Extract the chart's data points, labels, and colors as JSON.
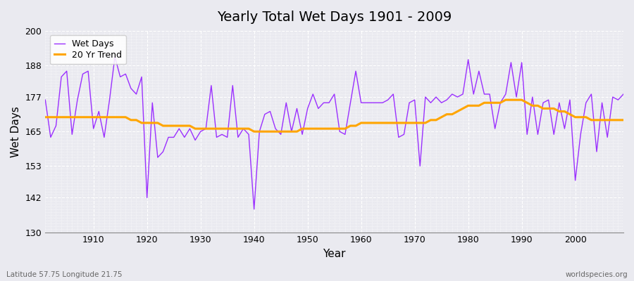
{
  "title": "Yearly Total Wet Days 1901 - 2009",
  "xlabel": "Year",
  "ylabel": "Wet Days",
  "footnote_left": "Latitude 57.75 Longitude 21.75",
  "footnote_right": "worldspecies.org",
  "ylim": [
    130,
    200
  ],
  "yticks": [
    130,
    142,
    153,
    165,
    177,
    188,
    200
  ],
  "xlim": [
    1901,
    2009
  ],
  "wet_days_color": "#9B30FF",
  "trend_color": "#FFA500",
  "bg_color": "#EAEAF0",
  "grid_color": "#FFFFFF",
  "legend_wet": "Wet Days",
  "legend_trend": "20 Yr Trend",
  "years": [
    1901,
    1902,
    1903,
    1904,
    1905,
    1906,
    1907,
    1908,
    1909,
    1910,
    1911,
    1912,
    1913,
    1914,
    1915,
    1916,
    1917,
    1918,
    1919,
    1920,
    1921,
    1922,
    1923,
    1924,
    1925,
    1926,
    1927,
    1928,
    1929,
    1930,
    1931,
    1932,
    1933,
    1934,
    1935,
    1936,
    1937,
    1938,
    1939,
    1940,
    1941,
    1942,
    1943,
    1944,
    1945,
    1946,
    1947,
    1948,
    1949,
    1950,
    1951,
    1952,
    1953,
    1954,
    1955,
    1956,
    1957,
    1958,
    1959,
    1960,
    1961,
    1962,
    1963,
    1964,
    1965,
    1966,
    1967,
    1968,
    1969,
    1970,
    1971,
    1972,
    1973,
    1974,
    1975,
    1976,
    1977,
    1978,
    1979,
    1980,
    1981,
    1982,
    1983,
    1984,
    1985,
    1986,
    1987,
    1988,
    1989,
    1990,
    1991,
    1992,
    1993,
    1994,
    1995,
    1996,
    1997,
    1998,
    1999,
    2000,
    2001,
    2002,
    2003,
    2004,
    2005,
    2006,
    2007,
    2008,
    2009
  ],
  "wet_days": [
    176,
    163,
    167,
    184,
    186,
    164,
    176,
    185,
    186,
    166,
    172,
    163,
    176,
    191,
    184,
    185,
    180,
    178,
    184,
    142,
    175,
    156,
    158,
    163,
    163,
    166,
    163,
    166,
    162,
    165,
    166,
    181,
    163,
    164,
    163,
    181,
    163,
    166,
    164,
    138,
    165,
    171,
    172,
    166,
    164,
    175,
    165,
    173,
    164,
    173,
    178,
    173,
    175,
    175,
    178,
    165,
    164,
    175,
    186,
    175,
    175,
    175,
    175,
    175,
    176,
    178,
    163,
    164,
    175,
    176,
    153,
    177,
    175,
    177,
    175,
    176,
    178,
    177,
    178,
    190,
    178,
    186,
    178,
    178,
    166,
    175,
    178,
    189,
    177,
    189,
    164,
    177,
    164,
    175,
    176,
    164,
    175,
    166,
    176,
    148,
    164,
    175,
    178,
    158,
    175,
    163,
    177,
    176,
    178
  ],
  "trend": [
    170,
    170,
    170,
    170,
    170,
    170,
    170,
    170,
    170,
    170,
    170,
    170,
    170,
    170,
    170,
    170,
    169,
    169,
    168,
    168,
    168,
    168,
    167,
    167,
    167,
    167,
    167,
    167,
    166,
    166,
    166,
    166,
    166,
    166,
    166,
    166,
    166,
    166,
    166,
    165,
    165,
    165,
    165,
    165,
    165,
    165,
    165,
    165,
    166,
    166,
    166,
    166,
    166,
    166,
    166,
    166,
    166,
    167,
    167,
    168,
    168,
    168,
    168,
    168,
    168,
    168,
    168,
    168,
    168,
    168,
    168,
    168,
    169,
    169,
    170,
    171,
    171,
    172,
    173,
    174,
    174,
    174,
    175,
    175,
    175,
    175,
    176,
    176,
    176,
    176,
    175,
    174,
    174,
    173,
    173,
    173,
    172,
    172,
    171,
    170,
    170,
    170,
    169,
    169,
    169,
    169,
    169,
    169,
    169
  ]
}
